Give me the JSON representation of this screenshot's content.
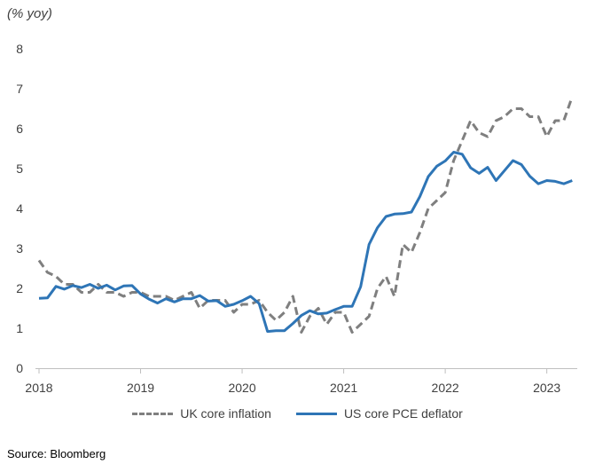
{
  "chart_data": {
    "type": "line",
    "unit_label": "(% yoy)",
    "source": "Source: Bloomberg",
    "ylim": [
      0,
      8
    ],
    "y_ticks": [
      "0",
      "1",
      "2",
      "3",
      "4",
      "5",
      "6",
      "7",
      "8"
    ],
    "xlim": [
      2018.0,
      2023.3
    ],
    "x_ticks": [
      "2018",
      "2019",
      "2020",
      "2021",
      "2022",
      "2023"
    ],
    "grid": false,
    "legend_position": "bottom",
    "series": [
      {
        "name": "UK core inflation",
        "color": "#7f7f7f",
        "style": "dashed",
        "x": [
          2018.0,
          2018.083,
          2018.167,
          2018.25,
          2018.333,
          2018.417,
          2018.5,
          2018.583,
          2018.667,
          2018.75,
          2018.833,
          2018.917,
          2019.0,
          2019.083,
          2019.167,
          2019.25,
          2019.333,
          2019.417,
          2019.5,
          2019.583,
          2019.667,
          2019.75,
          2019.833,
          2019.917,
          2020.0,
          2020.083,
          2020.167,
          2020.25,
          2020.333,
          2020.417,
          2020.5,
          2020.583,
          2020.667,
          2020.75,
          2020.833,
          2020.917,
          2021.0,
          2021.083,
          2021.167,
          2021.25,
          2021.333,
          2021.417,
          2021.5,
          2021.583,
          2021.667,
          2021.75,
          2021.833,
          2021.917,
          2022.0,
          2022.083,
          2022.167,
          2022.25,
          2022.333,
          2022.417,
          2022.5,
          2022.583,
          2022.667,
          2022.75,
          2022.833,
          2022.917,
          2023.0,
          2023.083,
          2023.167,
          2023.25
        ],
        "values": [
          2.7,
          2.4,
          2.3,
          2.1,
          2.1,
          1.9,
          1.9,
          2.1,
          1.9,
          1.9,
          1.8,
          1.9,
          1.9,
          1.8,
          1.8,
          1.8,
          1.7,
          1.8,
          1.9,
          1.5,
          1.7,
          1.7,
          1.7,
          1.4,
          1.6,
          1.6,
          1.7,
          1.4,
          1.2,
          1.4,
          1.8,
          0.9,
          1.3,
          1.5,
          1.1,
          1.4,
          1.4,
          0.9,
          1.1,
          1.3,
          2.0,
          2.3,
          1.8,
          3.1,
          2.9,
          3.4,
          4.0,
          4.2,
          4.4,
          5.2,
          5.7,
          6.2,
          5.9,
          5.8,
          6.2,
          6.3,
          6.5,
          6.5,
          6.3,
          6.3,
          5.8,
          6.2,
          6.2,
          6.8
        ]
      },
      {
        "name": "US core PCE deflator",
        "color": "#2e75b6",
        "style": "solid",
        "x": [
          2018.0,
          2018.083,
          2018.167,
          2018.25,
          2018.333,
          2018.417,
          2018.5,
          2018.583,
          2018.667,
          2018.75,
          2018.833,
          2018.917,
          2019.0,
          2019.083,
          2019.167,
          2019.25,
          2019.333,
          2019.417,
          2019.5,
          2019.583,
          2019.667,
          2019.75,
          2019.833,
          2019.917,
          2020.0,
          2020.083,
          2020.167,
          2020.25,
          2020.333,
          2020.417,
          2020.5,
          2020.583,
          2020.667,
          2020.75,
          2020.833,
          2020.917,
          2021.0,
          2021.083,
          2021.167,
          2021.25,
          2021.333,
          2021.417,
          2021.5,
          2021.583,
          2021.667,
          2021.75,
          2021.833,
          2021.917,
          2022.0,
          2022.083,
          2022.167,
          2022.25,
          2022.333,
          2022.417,
          2022.5,
          2022.583,
          2022.667,
          2022.75,
          2022.833,
          2022.917,
          2023.0,
          2023.083,
          2023.167,
          2023.25
        ],
        "values": [
          1.75,
          1.76,
          2.05,
          1.98,
          2.07,
          2.02,
          2.1,
          2.0,
          2.08,
          1.96,
          2.06,
          2.07,
          1.86,
          1.73,
          1.63,
          1.74,
          1.66,
          1.74,
          1.74,
          1.82,
          1.68,
          1.69,
          1.55,
          1.6,
          1.69,
          1.8,
          1.62,
          0.92,
          0.94,
          0.94,
          1.12,
          1.32,
          1.44,
          1.36,
          1.38,
          1.47,
          1.55,
          1.55,
          2.04,
          3.1,
          3.52,
          3.8,
          3.86,
          3.87,
          3.91,
          4.3,
          4.8,
          5.06,
          5.19,
          5.41,
          5.36,
          5.02,
          4.88,
          5.03,
          4.7,
          4.95,
          5.2,
          5.1,
          4.81,
          4.62,
          4.7,
          4.68,
          4.62,
          4.7
        ]
      }
    ]
  }
}
